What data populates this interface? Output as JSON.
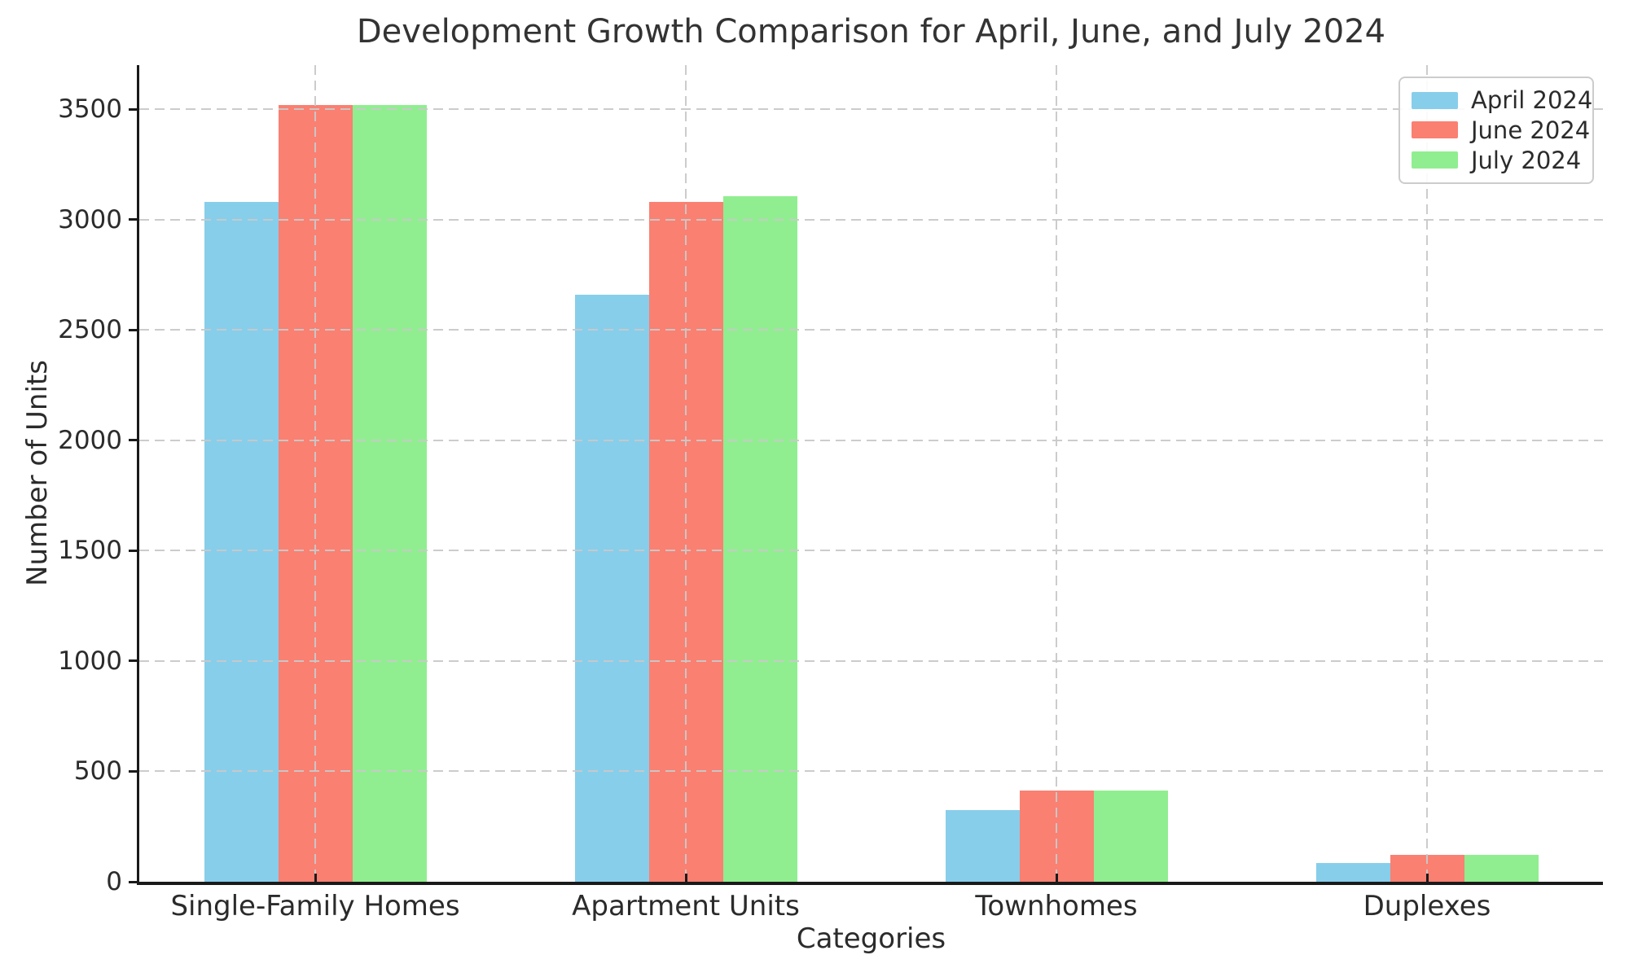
{
  "chart_data": {
    "type": "bar",
    "title": "Development Growth Comparison for April, June, and July 2024",
    "xlabel": "Categories",
    "ylabel": "Number of Units",
    "categories": [
      "Single-Family Homes",
      "Apartment Units",
      "Townhomes",
      "Duplexes"
    ],
    "series": [
      {
        "name": "April 2024",
        "color": "#87CEEB",
        "values": [
          3080,
          2660,
          325,
          85
        ]
      },
      {
        "name": "June 2024",
        "color": "#FA8072",
        "values": [
          3520,
          3080,
          415,
          123
        ]
      },
      {
        "name": "July 2024",
        "color": "#90EE90",
        "values": [
          3520,
          3105,
          415,
          123
        ]
      }
    ],
    "y_ticks": [
      0,
      500,
      1000,
      1500,
      2000,
      2500,
      3000,
      3500
    ],
    "ylim": [
      0,
      3700
    ],
    "grid": {
      "visible": true,
      "style": "dashed",
      "axes": "both",
      "color": "#cccccc",
      "drawn_above_bars": true
    },
    "legend": {
      "position": "upper right",
      "entries": [
        "April 2024",
        "June 2024",
        "July 2024"
      ]
    }
  },
  "colors": {
    "background": "#ffffff",
    "text": "#2b2b2b",
    "title_text": "#333333",
    "spine": "#1a1a1a",
    "grid": "#cccccc",
    "april_2024": "#87CEEB",
    "june_2024": "#FA8072",
    "july_2024": "#90EE90"
  }
}
